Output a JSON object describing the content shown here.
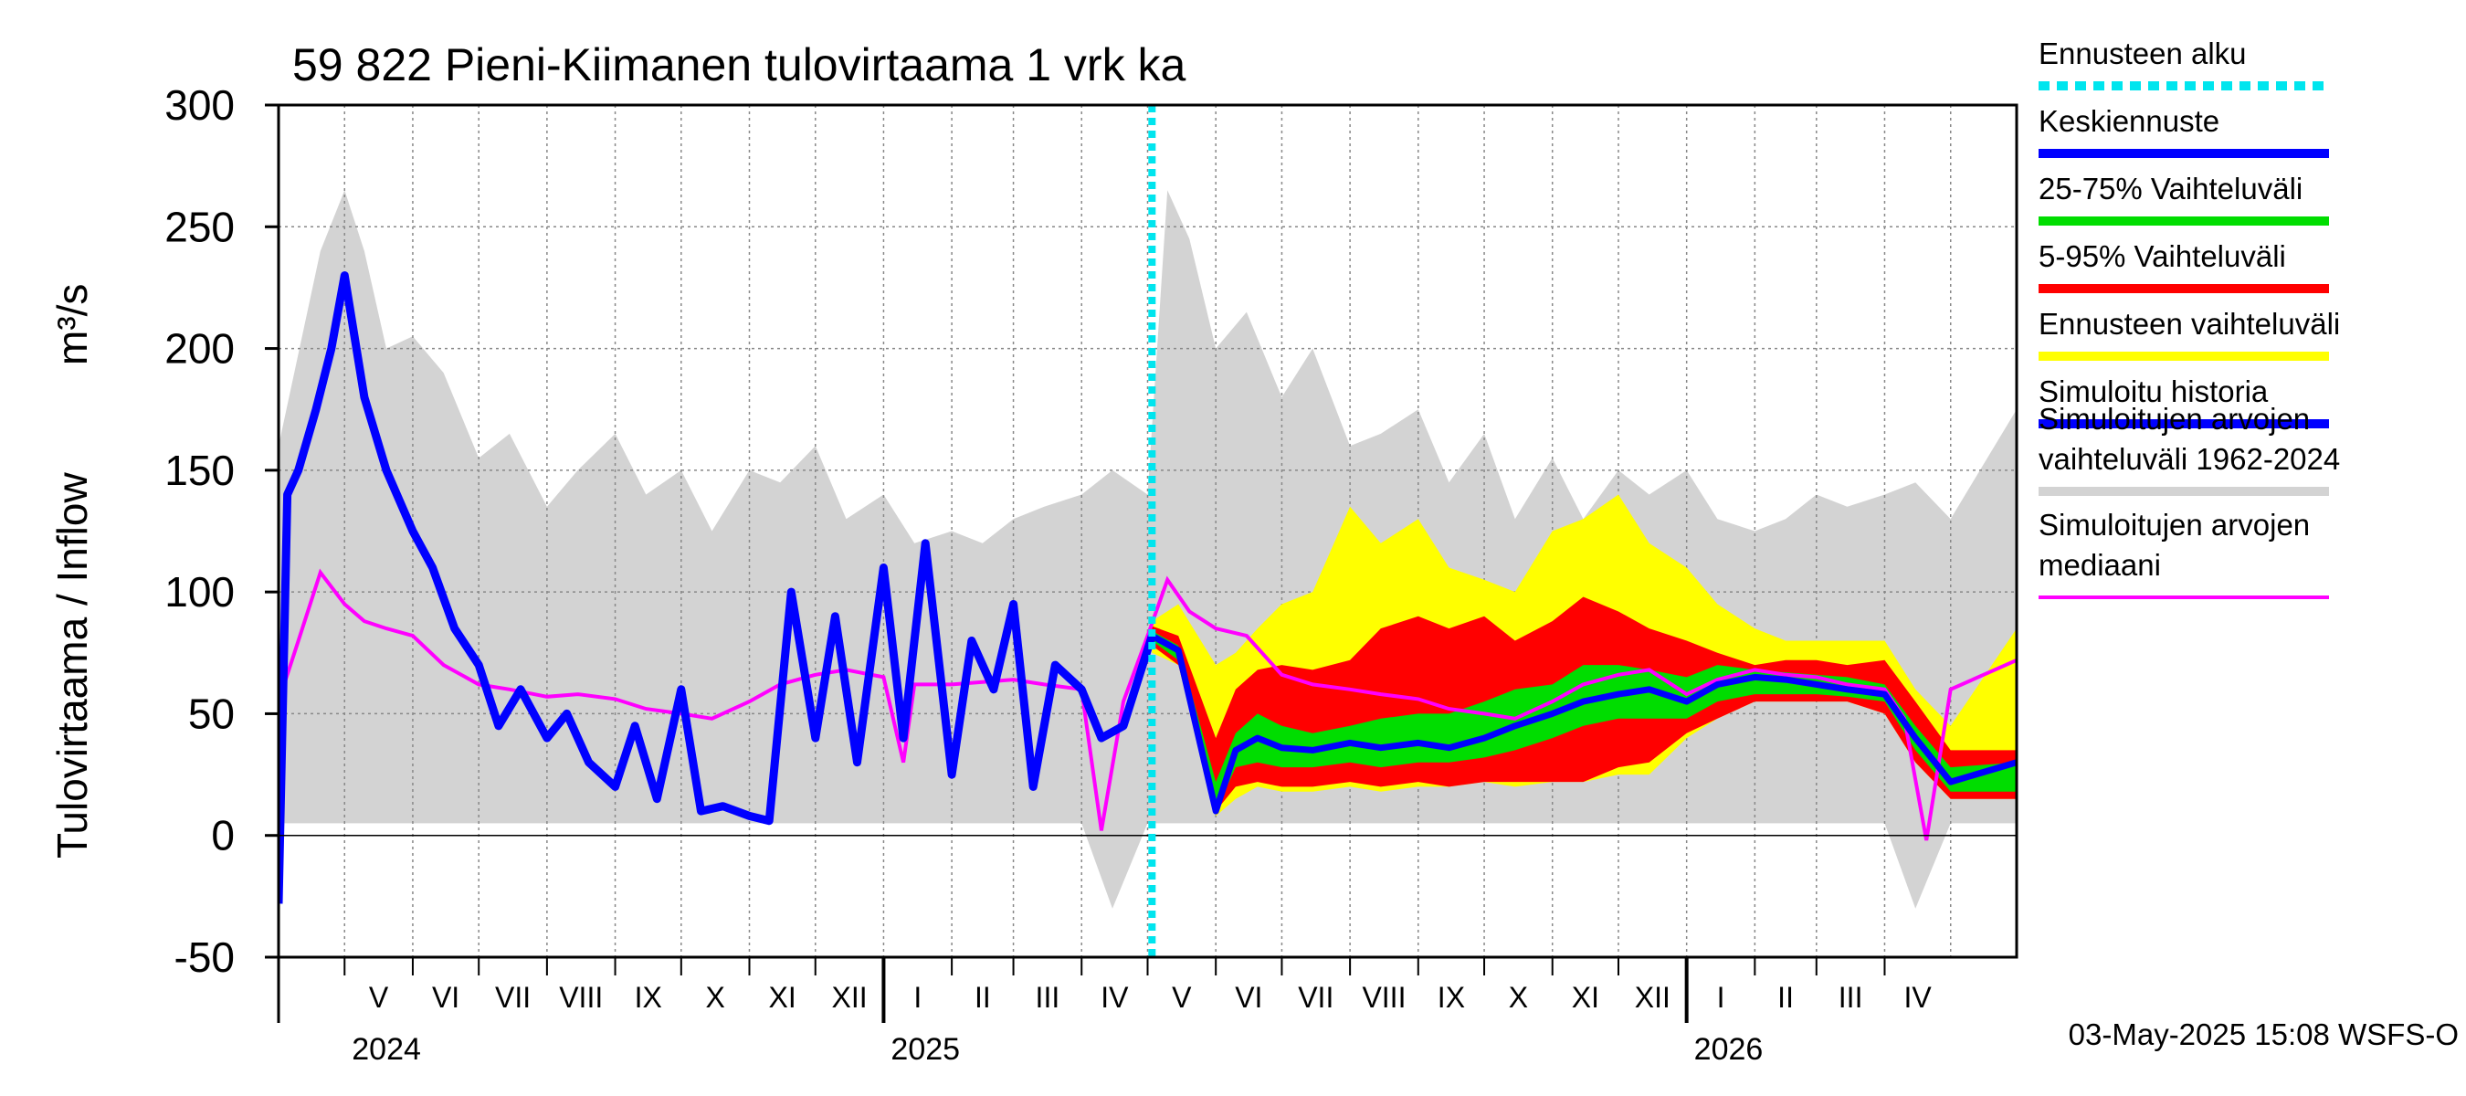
{
  "chart_data": {
    "type": "area",
    "title": "59 822 Pieni-Kiimanen tulovirtaama 1 vrk ka",
    "ylabel_left": "Tulovirtaama / Inflow",
    "ylabel_unit": "m³/s",
    "ylim": [
      -50,
      300
    ],
    "yticks": [
      -50,
      0,
      50,
      100,
      150,
      200,
      250,
      300
    ],
    "grid": true,
    "legend_position": "right",
    "x_range": [
      "2024-04-01",
      "2026-05-31"
    ],
    "forecast_start": "2025-05-03",
    "months": [
      "V",
      "VI",
      "VII",
      "VIII",
      "IX",
      "X",
      "XI",
      "XII",
      "I",
      "II",
      "III",
      "IV",
      "V",
      "VI",
      "VII",
      "VIII",
      "IX",
      "X",
      "XI",
      "XII",
      "I",
      "II",
      "III",
      "IV"
    ],
    "years": [
      "2024",
      "2025",
      "2026"
    ],
    "legend": [
      {
        "label": "Ennusteen alku",
        "color": "#00e5ee"
      },
      {
        "label": "Keskiennuste",
        "color": "#0000ff"
      },
      {
        "label": "25-75% Vaihteluväli",
        "color": "#00dd00"
      },
      {
        "label": "5-95% Vaihteluväli",
        "color": "#ff0000"
      },
      {
        "label": "Ennusteen vaihteluväli",
        "color": "#ffff00"
      },
      {
        "label": "Simuloitu historia",
        "color": "#0000ff"
      },
      {
        "label": "Simuloitujen arvojen vaihteluväli 1962-2024",
        "color": "#d3d3d3"
      },
      {
        "label": "Simuloitujen arvojen mediaani",
        "color": "#ff00ff"
      }
    ],
    "series": [
      {
        "name": "Simuloitujen arvojen vaihteluväli 1962-2024",
        "x": [
          "2024-04-01",
          "2024-04-20",
          "2024-05-01",
          "2024-05-10",
          "2024-05-20",
          "2024-06-01",
          "2024-06-15",
          "2024-07-01",
          "2024-07-15",
          "2024-08-01",
          "2024-08-15",
          "2024-09-01",
          "2024-09-15",
          "2024-10-01",
          "2024-10-15",
          "2024-11-01",
          "2024-11-15",
          "2024-12-01",
          "2024-12-15",
          "2025-01-01",
          "2025-01-15",
          "2025-02-01",
          "2025-02-15",
          "2025-03-01",
          "2025-03-15",
          "2025-04-01",
          "2025-04-15",
          "2025-05-01",
          "2025-05-10",
          "2025-05-20",
          "2025-06-01",
          "2025-06-15",
          "2025-07-01",
          "2025-07-15",
          "2025-08-01",
          "2025-08-15",
          "2025-09-01",
          "2025-09-15",
          "2025-10-01",
          "2025-10-15",
          "2025-11-01",
          "2025-11-15",
          "2025-12-01",
          "2025-12-15",
          "2026-01-01",
          "2026-01-15",
          "2026-02-01",
          "2026-02-15",
          "2026-03-01",
          "2026-03-15",
          "2026-04-01",
          "2026-04-15",
          "2026-05-01",
          "2026-05-31"
        ],
        "high": [
          160,
          240,
          265,
          240,
          200,
          205,
          190,
          155,
          165,
          135,
          150,
          165,
          140,
          150,
          125,
          150,
          145,
          160,
          130,
          140,
          120,
          125,
          120,
          130,
          135,
          140,
          150,
          140,
          265,
          245,
          200,
          215,
          180,
          200,
          160,
          165,
          175,
          145,
          165,
          130,
          155,
          130,
          150,
          140,
          150,
          130,
          125,
          130,
          140,
          135,
          140,
          145,
          130,
          175
        ],
        "low": [
          5,
          5,
          5,
          5,
          5,
          5,
          5,
          5,
          5,
          5,
          5,
          5,
          5,
          5,
          5,
          5,
          5,
          5,
          5,
          5,
          5,
          5,
          5,
          5,
          5,
          5,
          -30,
          5,
          5,
          5,
          5,
          5,
          5,
          5,
          5,
          5,
          5,
          5,
          5,
          5,
          5,
          5,
          5,
          5,
          5,
          5,
          5,
          5,
          5,
          5,
          5,
          -30,
          5,
          5
        ]
      },
      {
        "name": "Simuloitujen arvojen mediaani",
        "x": [
          "2024-04-01",
          "2024-04-10",
          "2024-04-20",
          "2024-05-01",
          "2024-05-10",
          "2024-05-20",
          "2024-06-01",
          "2024-06-15",
          "2024-07-01",
          "2024-07-15",
          "2024-08-01",
          "2024-08-15",
          "2024-09-01",
          "2024-09-15",
          "2024-10-01",
          "2024-10-15",
          "2024-11-01",
          "2024-11-15",
          "2024-12-01",
          "2024-12-15",
          "2025-01-01",
          "2025-01-10",
          "2025-01-15",
          "2025-02-01",
          "2025-02-15",
          "2025-03-01",
          "2025-03-15",
          "2025-04-01",
          "2025-04-10",
          "2025-04-20",
          "2025-05-01",
          "2025-05-10",
          "2025-05-20",
          "2025-06-01",
          "2025-06-15",
          "2025-07-01",
          "2025-07-15",
          "2025-08-01",
          "2025-08-15",
          "2025-09-01",
          "2025-09-15",
          "2025-10-01",
          "2025-10-15",
          "2025-11-01",
          "2025-11-15",
          "2025-12-01",
          "2025-12-15",
          "2026-01-01",
          "2026-01-15",
          "2026-02-01",
          "2026-02-15",
          "2026-03-01",
          "2026-03-15",
          "2026-04-01",
          "2026-04-10",
          "2026-04-20",
          "2026-05-01",
          "2026-05-31"
        ],
        "y": [
          55,
          80,
          108,
          95,
          88,
          85,
          82,
          70,
          62,
          60,
          57,
          58,
          56,
          52,
          50,
          48,
          55,
          62,
          66,
          68,
          65,
          30,
          62,
          62,
          63,
          64,
          62,
          60,
          2,
          55,
          82,
          105,
          92,
          85,
          82,
          66,
          62,
          60,
          58,
          56,
          52,
          50,
          48,
          55,
          62,
          66,
          68,
          58,
          64,
          68,
          66,
          65,
          62,
          60,
          48,
          -2,
          60,
          72
        ]
      },
      {
        "name": "Simuloitu historia",
        "x": [
          "2024-04-01",
          "2024-04-05",
          "2024-04-10",
          "2024-04-18",
          "2024-04-25",
          "2024-05-01",
          "2024-05-10",
          "2024-05-20",
          "2024-06-01",
          "2024-06-10",
          "2024-06-20",
          "2024-07-01",
          "2024-07-10",
          "2024-07-20",
          "2024-08-01",
          "2024-08-10",
          "2024-08-20",
          "2024-09-01",
          "2024-09-10",
          "2024-09-20",
          "2024-10-01",
          "2024-10-10",
          "2024-10-20",
          "2024-11-01",
          "2024-11-10",
          "2024-11-20",
          "2024-12-01",
          "2024-12-10",
          "2024-12-20",
          "2025-01-01",
          "2025-01-10",
          "2025-01-20",
          "2025-02-01",
          "2025-02-10",
          "2025-02-20",
          "2025-03-01",
          "2025-03-10",
          "2025-03-20",
          "2025-04-01",
          "2025-04-10",
          "2025-04-20",
          "2025-05-03"
        ],
        "y": [
          -28,
          140,
          150,
          175,
          200,
          230,
          180,
          150,
          125,
          110,
          85,
          70,
          45,
          60,
          40,
          50,
          30,
          20,
          45,
          15,
          60,
          10,
          12,
          8,
          6,
          100,
          40,
          90,
          30,
          110,
          40,
          120,
          25,
          80,
          60,
          95,
          20,
          70,
          60,
          40,
          45,
          82
        ]
      },
      {
        "name": "Ennusteen vaihteluväli",
        "x": [
          "2025-05-03",
          "2025-05-15",
          "2025-06-01",
          "2025-06-10",
          "2025-06-20",
          "2025-07-01",
          "2025-07-15",
          "2025-08-01",
          "2025-08-15",
          "2025-09-01",
          "2025-09-15",
          "2025-10-01",
          "2025-10-15",
          "2025-11-01",
          "2025-11-15",
          "2025-12-01",
          "2025-12-15",
          "2026-01-01",
          "2026-01-15",
          "2026-02-01",
          "2026-02-15",
          "2026-03-01",
          "2026-03-15",
          "2026-04-01",
          "2026-04-15",
          "2026-05-01",
          "2026-05-31"
        ],
        "high": [
          88,
          95,
          70,
          75,
          85,
          95,
          100,
          135,
          120,
          130,
          110,
          105,
          100,
          125,
          130,
          140,
          120,
          110,
          95,
          85,
          80,
          80,
          80,
          80,
          60,
          45,
          85
        ],
        "low": [
          75,
          70,
          8,
          15,
          20,
          18,
          18,
          20,
          18,
          20,
          20,
          22,
          20,
          22,
          22,
          25,
          25,
          40,
          48,
          55,
          55,
          55,
          55,
          50,
          30,
          15,
          15
        ]
      },
      {
        "name": "5-95% Vaihteluväli",
        "x": [
          "2025-05-03",
          "2025-05-15",
          "2025-06-01",
          "2025-06-10",
          "2025-06-20",
          "2025-07-01",
          "2025-07-15",
          "2025-08-01",
          "2025-08-15",
          "2025-09-01",
          "2025-09-15",
          "2025-10-01",
          "2025-10-15",
          "2025-11-01",
          "2025-11-15",
          "2025-12-01",
          "2025-12-15",
          "2026-01-01",
          "2026-01-15",
          "2026-02-01",
          "2026-02-15",
          "2026-03-01",
          "2026-03-15",
          "2026-04-01",
          "2026-04-15",
          "2026-05-01",
          "2026-05-31"
        ],
        "high": [
          86,
          82,
          40,
          60,
          68,
          70,
          68,
          72,
          85,
          90,
          85,
          90,
          80,
          88,
          98,
          92,
          85,
          80,
          75,
          70,
          72,
          72,
          70,
          72,
          55,
          35,
          35
        ],
        "low": [
          78,
          70,
          10,
          20,
          22,
          20,
          20,
          22,
          20,
          22,
          20,
          22,
          22,
          22,
          22,
          28,
          30,
          42,
          48,
          55,
          55,
          55,
          55,
          50,
          30,
          15,
          15
        ]
      },
      {
        "name": "25-75% Vaihteluväli",
        "x": [
          "2025-05-03",
          "2025-05-15",
          "2025-06-01",
          "2025-06-10",
          "2025-06-20",
          "2025-07-01",
          "2025-07-15",
          "2025-08-01",
          "2025-08-15",
          "2025-09-01",
          "2025-09-15",
          "2025-10-01",
          "2025-10-15",
          "2025-11-01",
          "2025-11-15",
          "2025-12-01",
          "2025-12-15",
          "2026-01-01",
          "2026-01-15",
          "2026-02-01",
          "2026-02-15",
          "2026-03-01",
          "2026-03-15",
          "2026-04-01",
          "2026-04-15",
          "2026-05-01",
          "2026-05-31"
        ],
        "high": [
          84,
          78,
          22,
          42,
          50,
          45,
          42,
          45,
          48,
          50,
          50,
          55,
          60,
          62,
          70,
          70,
          68,
          65,
          70,
          68,
          67,
          66,
          65,
          62,
          45,
          28,
          30
        ],
        "low": [
          80,
          72,
          10,
          28,
          30,
          28,
          28,
          30,
          28,
          30,
          30,
          32,
          35,
          40,
          45,
          48,
          48,
          48,
          55,
          58,
          58,
          58,
          57,
          55,
          35,
          18,
          18
        ]
      },
      {
        "name": "Keskiennuste",
        "x": [
          "2025-05-03",
          "2025-05-15",
          "2025-06-01",
          "2025-06-10",
          "2025-06-20",
          "2025-07-01",
          "2025-07-15",
          "2025-08-01",
          "2025-08-15",
          "2025-09-01",
          "2025-09-15",
          "2025-10-01",
          "2025-10-15",
          "2025-11-01",
          "2025-11-15",
          "2025-12-01",
          "2025-12-15",
          "2026-01-01",
          "2026-01-15",
          "2026-02-01",
          "2026-02-15",
          "2026-03-01",
          "2026-03-15",
          "2026-04-01",
          "2026-04-15",
          "2026-05-01",
          "2026-05-31"
        ],
        "y": [
          82,
          76,
          10,
          35,
          40,
          36,
          35,
          38,
          36,
          38,
          36,
          40,
          45,
          50,
          55,
          58,
          60,
          55,
          62,
          65,
          64,
          62,
          60,
          58,
          40,
          22,
          30
        ]
      }
    ],
    "timestamp": "03-May-2025 15:08 WSFS-O"
  }
}
